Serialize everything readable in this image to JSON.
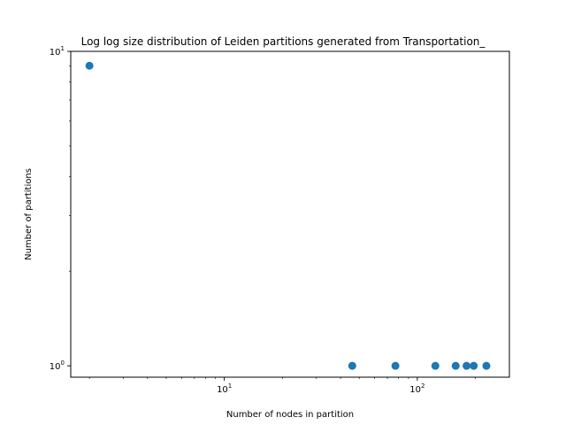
{
  "chart_data": {
    "type": "scatter",
    "title": "Log log size distribution of Leiden partitions generated from Transportation_",
    "xlabel": "Number of nodes in partition",
    "ylabel": "Number of partitions",
    "xscale": "log",
    "yscale": "log",
    "xlim": [
      1.6,
      300
    ],
    "ylim": [
      0.92,
      10
    ],
    "x_ticks": [
      {
        "value": 10,
        "label": "10",
        "exp": "1"
      },
      {
        "value": 100,
        "label": "10",
        "exp": "2"
      }
    ],
    "y_ticks": [
      {
        "value": 1,
        "label": "10",
        "exp": "0"
      },
      {
        "value": 10,
        "label": "10",
        "exp": "1"
      }
    ],
    "points": [
      {
        "x": 2,
        "y": 9
      },
      {
        "x": 46,
        "y": 1
      },
      {
        "x": 77,
        "y": 1
      },
      {
        "x": 124,
        "y": 1
      },
      {
        "x": 158,
        "y": 1
      },
      {
        "x": 180,
        "y": 1
      },
      {
        "x": 196,
        "y": 1
      },
      {
        "x": 228,
        "y": 1
      }
    ],
    "marker_color": "#1f77b4",
    "grid": false,
    "legend": "none"
  }
}
